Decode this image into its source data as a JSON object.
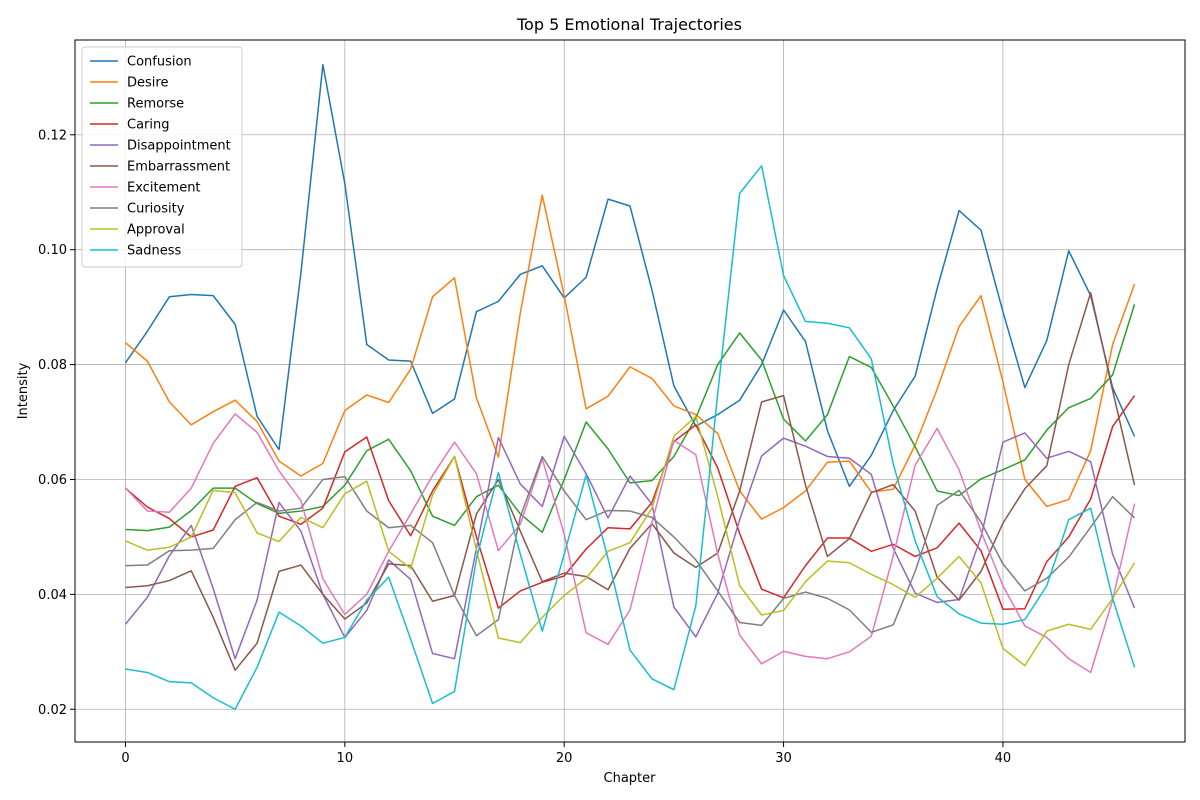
{
  "chart_data": {
    "type": "line",
    "title": "Top 5 Emotional Trajectories",
    "xlabel": "Chapter",
    "ylabel": "Intensity",
    "xlim": [
      -2.3,
      48.3
    ],
    "ylim": [
      0.0143,
      0.1365
    ],
    "xticks": [
      0,
      10,
      20,
      30,
      40
    ],
    "yticks": [
      0.02,
      0.04,
      0.06,
      0.08,
      0.1,
      0.12
    ],
    "ytick_labels": [
      "0.02",
      "0.04",
      "0.06",
      "0.08",
      "0.10",
      "0.12"
    ],
    "grid": true,
    "legend_position": "upper-left",
    "x": [
      0,
      1,
      2,
      3,
      4,
      5,
      6,
      7,
      8,
      9,
      10,
      11,
      12,
      13,
      14,
      15,
      16,
      17,
      18,
      19,
      20,
      21,
      22,
      23,
      24,
      25,
      26,
      27,
      28,
      29,
      30,
      31,
      32,
      33,
      34,
      35,
      36,
      37,
      38,
      39,
      40,
      41,
      42,
      43,
      44,
      45,
      46
    ],
    "series": [
      {
        "name": "Confusion",
        "color": "#1f77b4",
        "values": [
          0.0803,
          0.0858,
          0.0918,
          0.0922,
          0.092,
          0.087,
          0.071,
          0.0652,
          0.096,
          0.1322,
          0.1115,
          0.0835,
          0.0808,
          0.0806,
          0.0715,
          0.074,
          0.0892,
          0.091,
          0.0957,
          0.0972,
          0.0916,
          0.0952,
          0.1088,
          0.1076,
          0.093,
          0.0763,
          0.0693,
          0.0713,
          0.0738,
          0.08,
          0.0895,
          0.084,
          0.0685,
          0.0588,
          0.0642,
          0.072,
          0.078,
          0.0932,
          0.1068,
          0.1034,
          0.0892,
          0.076,
          0.0842,
          0.0998,
          0.092,
          0.076,
          0.0675
        ]
      },
      {
        "name": "Desire",
        "color": "#ff7f0e",
        "values": [
          0.0838,
          0.0806,
          0.0735,
          0.0695,
          0.0718,
          0.0738,
          0.0701,
          0.0632,
          0.0606,
          0.0628,
          0.072,
          0.0747,
          0.0734,
          0.0792,
          0.0918,
          0.0951,
          0.0742,
          0.0639,
          0.089,
          0.1095,
          0.092,
          0.0723,
          0.0745,
          0.0796,
          0.0776,
          0.0728,
          0.0713,
          0.068,
          0.058,
          0.0531,
          0.0551,
          0.058,
          0.063,
          0.0632,
          0.0578,
          0.0583,
          0.066,
          0.0757,
          0.0866,
          0.092,
          0.077,
          0.06,
          0.0553,
          0.0565,
          0.065,
          0.0835,
          0.094
        ]
      },
      {
        "name": "Remorse",
        "color": "#2ca02c",
        "values": [
          0.0513,
          0.0511,
          0.0517,
          0.0546,
          0.0585,
          0.0585,
          0.0558,
          0.0541,
          0.0545,
          0.0553,
          0.059,
          0.065,
          0.067,
          0.0615,
          0.0536,
          0.052,
          0.057,
          0.059,
          0.054,
          0.0508,
          0.06,
          0.07,
          0.0653,
          0.0594,
          0.0598,
          0.064,
          0.0707,
          0.08,
          0.0855,
          0.0808,
          0.0705,
          0.0667,
          0.0713,
          0.0814,
          0.0795,
          0.0728,
          0.0657,
          0.058,
          0.0572,
          0.0601,
          0.0617,
          0.0634,
          0.0686,
          0.0725,
          0.0741,
          0.0782,
          0.0905
        ]
      },
      {
        "name": "Caring",
        "color": "#d62728",
        "values": [
          0.0585,
          0.0552,
          0.0532,
          0.05,
          0.0512,
          0.0588,
          0.0603,
          0.0536,
          0.0522,
          0.055,
          0.0648,
          0.0674,
          0.0563,
          0.0502,
          0.058,
          0.064,
          0.05,
          0.0376,
          0.0406,
          0.0421,
          0.0432,
          0.0479,
          0.0516,
          0.0514,
          0.056,
          0.0666,
          0.0695,
          0.062,
          0.0506,
          0.0409,
          0.0394,
          0.045,
          0.0498,
          0.0498,
          0.0475,
          0.0487,
          0.0466,
          0.0481,
          0.0524,
          0.0476,
          0.0374,
          0.0375,
          0.0457,
          0.05,
          0.0566,
          0.0692,
          0.0746
        ]
      },
      {
        "name": "Disappointment",
        "color": "#9467bd",
        "values": [
          0.0348,
          0.0395,
          0.0467,
          0.052,
          0.041,
          0.0288,
          0.039,
          0.056,
          0.051,
          0.04,
          0.0325,
          0.0372,
          0.046,
          0.0426,
          0.0297,
          0.0288,
          0.048,
          0.0673,
          0.0592,
          0.0553,
          0.0675,
          0.061,
          0.0533,
          0.0606,
          0.0557,
          0.0378,
          0.0326,
          0.0402,
          0.053,
          0.0641,
          0.0672,
          0.0658,
          0.064,
          0.0637,
          0.0609,
          0.048,
          0.0402,
          0.0386,
          0.0391,
          0.05,
          0.0665,
          0.0681,
          0.0637,
          0.0649,
          0.0631,
          0.047,
          0.0376
        ]
      },
      {
        "name": "Embarrassment",
        "color": "#8c564b",
        "values": [
          0.0412,
          0.0415,
          0.0424,
          0.0441,
          0.036,
          0.0268,
          0.0315,
          0.044,
          0.0451,
          0.04,
          0.0357,
          0.0385,
          0.0453,
          0.045,
          0.0388,
          0.0398,
          0.054,
          0.06,
          0.051,
          0.0422,
          0.0437,
          0.0431,
          0.0408,
          0.048,
          0.0523,
          0.0472,
          0.0447,
          0.0472,
          0.058,
          0.0735,
          0.0746,
          0.059,
          0.0466,
          0.0497,
          0.0577,
          0.0591,
          0.0545,
          0.043,
          0.039,
          0.044,
          0.0524,
          0.0584,
          0.0624,
          0.08,
          0.0925,
          0.0755,
          0.059
        ]
      },
      {
        "name": "Excitement",
        "color": "#e377c2",
        "values": [
          0.0585,
          0.0545,
          0.0543,
          0.0585,
          0.0663,
          0.0714,
          0.0682,
          0.0615,
          0.0563,
          0.0427,
          0.0365,
          0.04,
          0.0475,
          0.054,
          0.0607,
          0.0665,
          0.061,
          0.0476,
          0.0522,
          0.0636,
          0.0505,
          0.0333,
          0.0313,
          0.0373,
          0.0525,
          0.0668,
          0.0643,
          0.047,
          0.0329,
          0.0279,
          0.0301,
          0.0292,
          0.0288,
          0.03,
          0.0327,
          0.0467,
          0.0625,
          0.0689,
          0.0617,
          0.051,
          0.0415,
          0.0345,
          0.0325,
          0.0288,
          0.0264,
          0.039,
          0.0558
        ]
      },
      {
        "name": "Curiosity",
        "color": "#7f7f7f",
        "values": [
          0.045,
          0.0451,
          0.0476,
          0.0477,
          0.048,
          0.053,
          0.056,
          0.0545,
          0.055,
          0.06,
          0.0605,
          0.0545,
          0.0516,
          0.052,
          0.049,
          0.0398,
          0.0328,
          0.0356,
          0.0535,
          0.064,
          0.058,
          0.053,
          0.0546,
          0.0545,
          0.0534,
          0.05,
          0.046,
          0.0406,
          0.0351,
          0.0346,
          0.0393,
          0.0404,
          0.0393,
          0.0373,
          0.0334,
          0.0347,
          0.044,
          0.0555,
          0.0581,
          0.0526,
          0.0453,
          0.0406,
          0.0428,
          0.0465,
          0.0517,
          0.057,
          0.0533
        ]
      },
      {
        "name": "Approval",
        "color": "#bcbd22",
        "values": [
          0.0493,
          0.0477,
          0.0482,
          0.05,
          0.0581,
          0.0577,
          0.0507,
          0.0492,
          0.0534,
          0.0516,
          0.0575,
          0.0597,
          0.0475,
          0.0445,
          0.0573,
          0.064,
          0.0477,
          0.0324,
          0.0316,
          0.036,
          0.0398,
          0.0428,
          0.0475,
          0.049,
          0.055,
          0.0675,
          0.071,
          0.057,
          0.0415,
          0.0364,
          0.0372,
          0.0422,
          0.0458,
          0.0455,
          0.0435,
          0.0417,
          0.0395,
          0.0428,
          0.0466,
          0.042,
          0.0306,
          0.0276,
          0.0336,
          0.0348,
          0.0339,
          0.0393,
          0.0455
        ]
      },
      {
        "name": "Sadness",
        "color": "#17becf",
        "values": [
          0.027,
          0.0264,
          0.0248,
          0.0246,
          0.022,
          0.02,
          0.0273,
          0.0369,
          0.0345,
          0.0315,
          0.0325,
          0.039,
          0.043,
          0.0322,
          0.021,
          0.0231,
          0.0462,
          0.0612,
          0.047,
          0.0336,
          0.047,
          0.0608,
          0.0462,
          0.0303,
          0.0253,
          0.0234,
          0.038,
          0.075,
          0.1098,
          0.1146,
          0.0955,
          0.0875,
          0.0872,
          0.0864,
          0.081,
          0.0627,
          0.0493,
          0.0396,
          0.0366,
          0.035,
          0.0348,
          0.0356,
          0.0415,
          0.053,
          0.055,
          0.0393,
          0.0273
        ]
      }
    ]
  }
}
